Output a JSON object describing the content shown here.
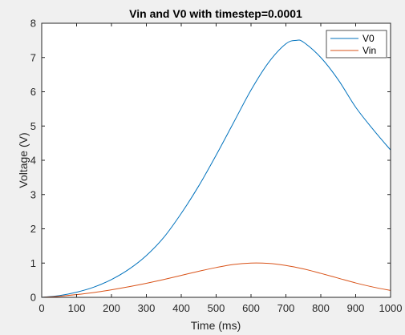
{
  "chart_data": {
    "type": "line",
    "title": "Vin and V0 with timestep=0.0001",
    "xlabel": "Time (ms)",
    "ylabel": "Voltage (V)",
    "xlim": [
      0,
      1000
    ],
    "ylim": [
      0,
      8
    ],
    "xticks": [
      "0",
      "100",
      "200",
      "300",
      "400",
      "500",
      "600",
      "700",
      "800",
      "900",
      "1000"
    ],
    "yticks": [
      "0",
      "1",
      "2",
      "3",
      "4",
      "5",
      "6",
      "7",
      "8"
    ],
    "grid": false,
    "legend_position": "top-right",
    "series": [
      {
        "name": "V0",
        "color": "#0072BD",
        "x": [
          0,
          50,
          100,
          150,
          200,
          250,
          300,
          350,
          400,
          450,
          500,
          550,
          600,
          650,
          700,
          730,
          750,
          800,
          850,
          900,
          950,
          1000
        ],
        "y": [
          0.0,
          0.05,
          0.15,
          0.3,
          0.52,
          0.82,
          1.22,
          1.75,
          2.45,
          3.25,
          4.15,
          5.1,
          6.05,
          6.85,
          7.4,
          7.5,
          7.45,
          7.0,
          6.35,
          5.55,
          4.9,
          4.3
        ]
      },
      {
        "name": "Vin",
        "color": "#D95319",
        "x": [
          0,
          50,
          100,
          150,
          200,
          250,
          300,
          350,
          400,
          450,
          500,
          550,
          600,
          650,
          700,
          750,
          800,
          850,
          900,
          950,
          1000
        ],
        "y": [
          0.0,
          0.03,
          0.08,
          0.14,
          0.22,
          0.31,
          0.41,
          0.52,
          0.64,
          0.76,
          0.87,
          0.96,
          1.0,
          0.99,
          0.93,
          0.83,
          0.7,
          0.56,
          0.42,
          0.3,
          0.2
        ]
      }
    ]
  }
}
